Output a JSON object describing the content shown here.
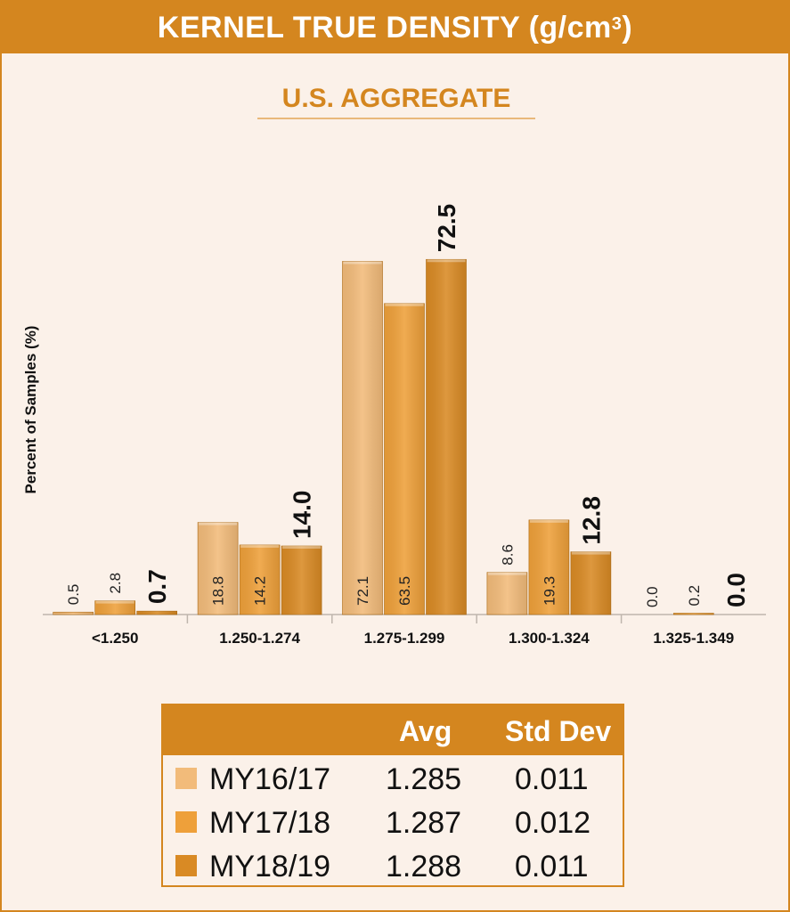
{
  "title": "KERNEL TRUE DENSITY (g/cm",
  "title_superscript": "3",
  "title_close": ")",
  "chart_data": {
    "type": "bar",
    "title": "U.S. AGGREGATE",
    "xlabel": "",
    "ylabel": "Percent of Samples (%)",
    "ylim": [
      0,
      80
    ],
    "categories": [
      "<1.250",
      "1.250-1.274",
      "1.275-1.299",
      "1.300-1.324",
      "1.325-1.349"
    ],
    "series": [
      {
        "name": "MY16/17",
        "color": "#f2bb7a",
        "values": [
          0.5,
          18.8,
          72.1,
          8.6,
          0.0
        ],
        "labels": [
          "0.5",
          "18.8",
          "72.1",
          "8.6",
          "0.0"
        ]
      },
      {
        "name": "MY17/18",
        "color": "#eea03a",
        "values": [
          2.8,
          14.2,
          63.5,
          19.3,
          0.2
        ],
        "labels": [
          "2.8",
          "14.2",
          "63.5",
          "19.3",
          "0.2"
        ]
      },
      {
        "name": "MY18/19",
        "color": "#d98a24",
        "values": [
          0.7,
          14.0,
          72.5,
          12.8,
          0.0
        ],
        "labels": [
          "0.7",
          "14.0",
          "72.5",
          "12.8",
          "0.0"
        ]
      }
    ]
  },
  "stats_table": {
    "headers": {
      "avg": "Avg",
      "std": "Std Dev"
    },
    "rows": [
      {
        "name": "MY16/17",
        "avg": "1.285",
        "std": "0.011",
        "color": "#f2bb7a"
      },
      {
        "name": "MY17/18",
        "avg": "1.287",
        "std": "0.012",
        "color": "#eea03a"
      },
      {
        "name": "MY18/19",
        "avg": "1.288",
        "std": "0.011",
        "color": "#d98a24"
      }
    ]
  }
}
